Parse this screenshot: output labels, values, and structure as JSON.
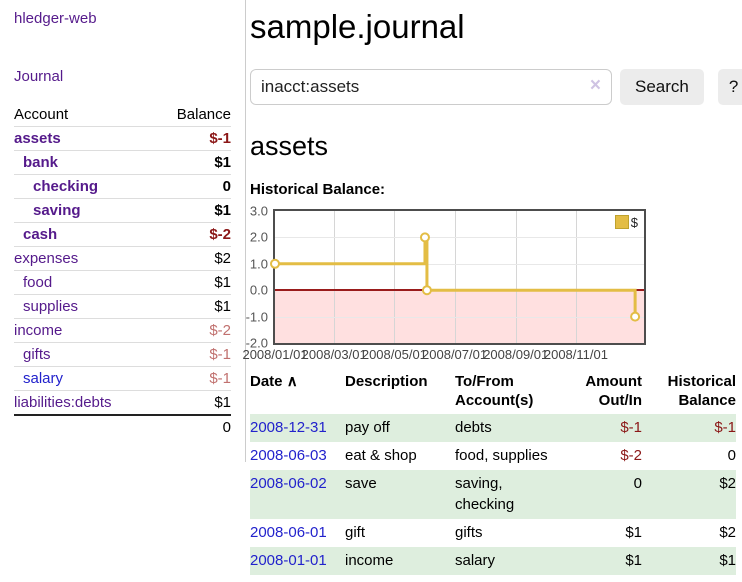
{
  "brand": "hledger-web",
  "nav": {
    "journal": "Journal"
  },
  "colors": {
    "link_purple": "#551A8B",
    "link_blue": "#2222cc",
    "negative": "#8b1717",
    "negative_muted": "#c1716f",
    "row_stripe_green": "#deeede",
    "chart_line_gold": "#E3BD45",
    "chart_negative_region": "#ffe0e0",
    "chart_zero_line": "#9a1b1b"
  },
  "sidebar": {
    "account_header": "Account",
    "balance_header": "Balance",
    "rows": [
      {
        "name": "assets",
        "balance": "$-1"
      },
      {
        "name": "bank",
        "balance": "$1"
      },
      {
        "name": "checking",
        "balance": "0"
      },
      {
        "name": "saving",
        "balance": "$1"
      },
      {
        "name": "cash",
        "balance": "$-2"
      },
      {
        "name": "expenses",
        "balance": "$2"
      },
      {
        "name": "food",
        "balance": "$1"
      },
      {
        "name": "supplies",
        "balance": "$1"
      },
      {
        "name": "income",
        "balance": "$-2"
      },
      {
        "name": "gifts",
        "balance": "$-1"
      },
      {
        "name": "salary",
        "balance": "$-1"
      },
      {
        "name": "liabilities:debts",
        "balance": "$1"
      }
    ],
    "total": "0"
  },
  "header": {
    "title": "sample.journal"
  },
  "search": {
    "value": "inacct:assets",
    "clear_icon": "×",
    "search_button": "Search",
    "help_button": "?"
  },
  "account": {
    "title": "assets",
    "section_label": "Historical Balance:"
  },
  "chart_data": {
    "type": "line",
    "step": true,
    "title": "Historical Balance",
    "series": [
      {
        "name": "$",
        "color": "#E3BD45",
        "marker": "open-circle",
        "points": [
          [
            "2008-01-01",
            1
          ],
          [
            "2008-06-01",
            2
          ],
          [
            "2008-06-03",
            0
          ],
          [
            "2008-12-31",
            -1
          ]
        ]
      }
    ],
    "ylim": [
      -2,
      3
    ],
    "yticks": [
      "3.0",
      "2.0",
      "1.0",
      "0.0",
      "-1.0",
      "-2.0"
    ],
    "xticks": [
      "2008/01/01",
      "2008/03/01",
      "2008/05/01",
      "2008/07/01",
      "2008/09/01",
      "2008/11/01"
    ],
    "legend_position": "top-right",
    "grid": true
  },
  "register": {
    "sort_icon": "∧",
    "headers": {
      "date": "Date",
      "description": "Description",
      "tofrom": "To/From\nAccount(s)",
      "amount": "Amount\nOut/In",
      "balance": "Historical\nBalance"
    },
    "rows": [
      {
        "date": "2008-12-31",
        "description": "pay off",
        "tofrom": "debts",
        "amount": "$-1",
        "balance": "$-1"
      },
      {
        "date": "2008-06-03",
        "description": "eat & shop",
        "tofrom": "food, supplies",
        "amount": "$-2",
        "balance": "0"
      },
      {
        "date": "2008-06-02",
        "description": "save",
        "tofrom": "saving,\nchecking",
        "amount": "0",
        "balance": "$2"
      },
      {
        "date": "2008-06-01",
        "description": "gift",
        "tofrom": "gifts",
        "amount": "$1",
        "balance": "$2"
      },
      {
        "date": "2008-01-01",
        "description": "income",
        "tofrom": "salary",
        "amount": "$1",
        "balance": "$1"
      }
    ]
  }
}
